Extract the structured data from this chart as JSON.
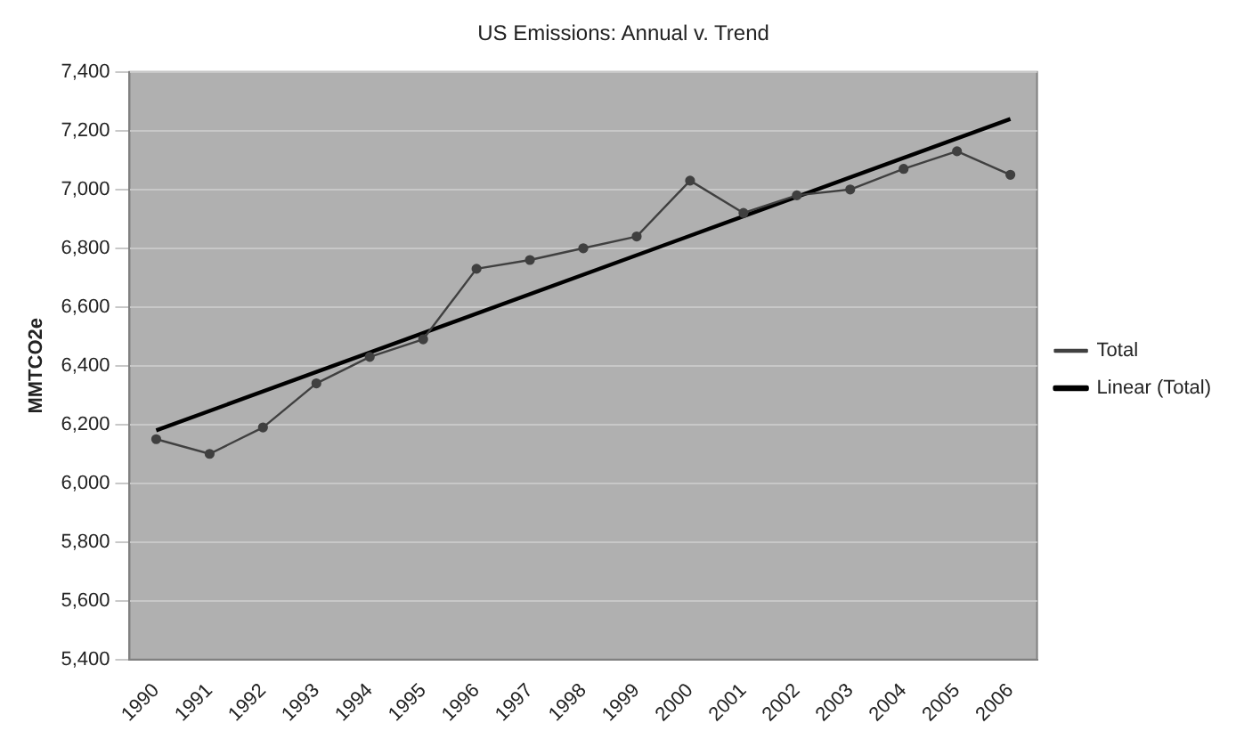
{
  "chart_data": {
    "type": "line",
    "title": "US Emissions: Annual v. Trend",
    "ylabel": "MMTCO2e",
    "categories": [
      "1990",
      "1991",
      "1992",
      "1993",
      "1994",
      "1995",
      "1996",
      "1997",
      "1998",
      "1999",
      "2000",
      "2001",
      "2002",
      "2003",
      "2004",
      "2005",
      "2006"
    ],
    "series": [
      {
        "name": "Total",
        "color": "#404040",
        "marker": "circle",
        "values": [
          6150,
          6100,
          6190,
          6340,
          6430,
          6490,
          6730,
          6760,
          6800,
          6840,
          7030,
          6920,
          6980,
          7000,
          7070,
          7130,
          7050
        ]
      },
      {
        "name": "Linear (Total)",
        "color": "#000000",
        "marker": "none",
        "values": [
          6180,
          null,
          null,
          null,
          null,
          null,
          null,
          null,
          null,
          null,
          null,
          null,
          null,
          null,
          null,
          null,
          7240
        ]
      }
    ],
    "ylim": [
      5400,
      7400
    ],
    "yticks": [
      {
        "value": 5400,
        "label": "5,400"
      },
      {
        "value": 5600,
        "label": "5,600"
      },
      {
        "value": 5800,
        "label": "5,800"
      },
      {
        "value": 6000,
        "label": "6,000"
      },
      {
        "value": 6200,
        "label": "6,200"
      },
      {
        "value": 6400,
        "label": "6,400"
      },
      {
        "value": 6600,
        "label": "6,600"
      },
      {
        "value": 6800,
        "label": "6,800"
      },
      {
        "value": 7000,
        "label": "7,000"
      },
      {
        "value": 7200,
        "label": "7,200"
      },
      {
        "value": 7400,
        "label": "7,400"
      }
    ],
    "grid": "y",
    "legend": "right"
  }
}
